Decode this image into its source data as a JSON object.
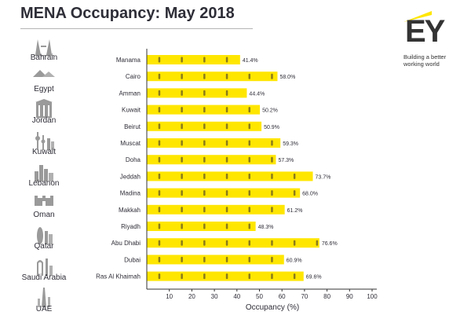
{
  "header": {
    "title": "MENA Occupancy: May 2018"
  },
  "brand": {
    "logo": "EY",
    "tagline_1": "Building a better",
    "tagline_2": "working world"
  },
  "colors": {
    "bar": "#ffe600",
    "dark": "#2e2e38",
    "icon": "#9a9a9a",
    "axis": "#333333"
  },
  "countries": [
    {
      "name": "Bahrain",
      "icon": "bahrain-skyline-icon"
    },
    {
      "name": "Egypt",
      "icon": "pyramids-icon"
    },
    {
      "name": "Jordan",
      "icon": "petra-treasury-icon"
    },
    {
      "name": "Kuwait",
      "icon": "kuwait-towers-icon"
    },
    {
      "name": "Lebanon",
      "icon": "beirut-skyline-icon"
    },
    {
      "name": "Oman",
      "icon": "fort-icon"
    },
    {
      "name": "Qatar",
      "icon": "doha-towers-icon"
    },
    {
      "name": "Saudi Arabia",
      "icon": "kingdom-centre-icon"
    },
    {
      "name": "UAE",
      "icon": "burj-khalifa-icon"
    }
  ],
  "chart_data": {
    "type": "bar",
    "orientation": "horizontal",
    "title": "MENA Occupancy: May 2018",
    "xlabel": "Occupancy (%)",
    "ylabel": "",
    "xlim": [
      0,
      100
    ],
    "xticks": [
      10,
      20,
      30,
      40,
      50,
      60,
      70,
      80,
      90,
      100
    ],
    "categories": [
      "Manama",
      "Cairo",
      "Amman",
      "Kuwait",
      "Beirut",
      "Muscat",
      "Doha",
      "Jeddah",
      "Madina",
      "Makkah",
      "Riyadh",
      "Abu Dhabi",
      "Dubai",
      "Ras Al Khaimah"
    ],
    "values": [
      41.4,
      58.0,
      44.4,
      50.2,
      50.9,
      59.3,
      57.3,
      73.7,
      68.0,
      61.2,
      48.3,
      76.6,
      60.9,
      69.6
    ],
    "value_labels": [
      "41.4%",
      "58.0%",
      "44.4%",
      "50.2%",
      "50.9%",
      "59.3%",
      "57.3%",
      "73.7%",
      "68.0%",
      "61.2%",
      "48.3%",
      "76.6%",
      "60.9%",
      "69.6%"
    ],
    "grid": false
  }
}
